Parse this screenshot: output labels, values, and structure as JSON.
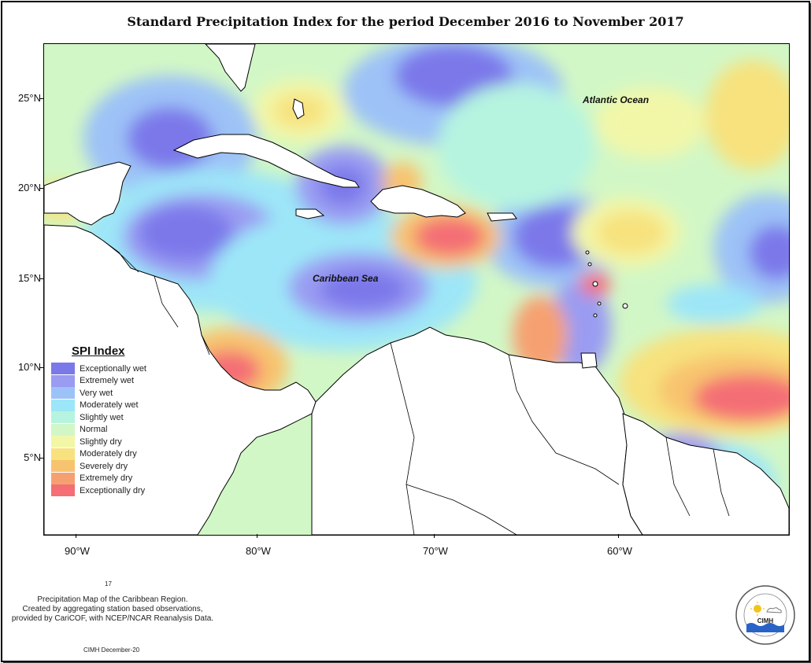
{
  "title": "Standard Precipitation Index for the period December 2016 to November 2017",
  "map": {
    "lat_labels": [
      "25°N",
      "20°N",
      "15°N",
      "10°N",
      "5°N"
    ],
    "lon_labels": [
      "90°W",
      "80°W",
      "70°W",
      "60°W"
    ],
    "place_labels": {
      "atlantic": "Atlantic Ocean",
      "caribbean": "Caribbean Sea"
    },
    "colors": {
      "land": "#ffffff",
      "coast": "#000000"
    }
  },
  "legend": {
    "title": "SPI Index",
    "items": [
      {
        "label": "Exceptionally wet",
        "color": "#7b78ea"
      },
      {
        "label": "Extremely wet",
        "color": "#9a9cf2"
      },
      {
        "label": "Very wet",
        "color": "#9dc2f7"
      },
      {
        "label": "Moderately wet",
        "color": "#9de6f8"
      },
      {
        "label": "Slightly wet",
        "color": "#b6f4e0"
      },
      {
        "label": "Normal",
        "color": "#d2f7c6"
      },
      {
        "label": "Slightly dry",
        "color": "#f2f7a8"
      },
      {
        "label": "Moderately dry",
        "color": "#f7e27e"
      },
      {
        "label": "Severely dry",
        "color": "#f8c36e"
      },
      {
        "label": "Extremely dry",
        "color": "#f6a071"
      },
      {
        "label": "Exceptionally dry",
        "color": "#f46e74"
      }
    ]
  },
  "footer": {
    "small_number": "17",
    "note_line1": "Precipitation Map of the Caribbean Region.",
    "note_line2": "Created by aggregating station based observations,",
    "note_line3": "provided by CariCOF, with NCEP/NCAR Reanalysis Data.",
    "date": "CIMH December-20"
  },
  "logo": {
    "text": "CIMH",
    "icon": "cimh-logo-icon"
  }
}
